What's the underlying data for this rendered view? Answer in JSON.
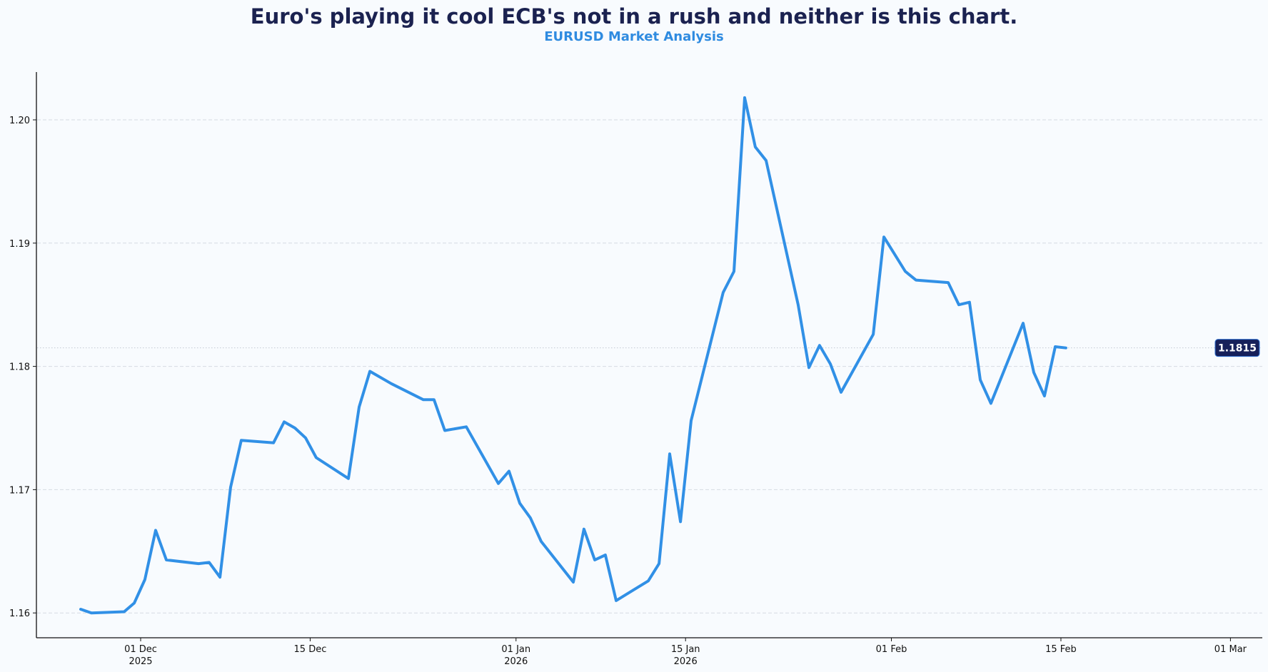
{
  "header": {
    "title": "Euro's playing it cool ECB's not in a rush and neither is this chart.",
    "subtitle": "EURUSD Market Analysis"
  },
  "colors": {
    "line": "#3190e6",
    "title": "#1b2250",
    "subtitle": "#2f8be0",
    "badge_bg": "#16205a",
    "grid": "#d6dbe2",
    "background": "#f8fbfe"
  },
  "last_value_badge": "1.1815",
  "chart_data": {
    "type": "line",
    "title": "Euro's playing it cool ECB's not in a rush and neither is this chart.",
    "subtitle": "EURUSD Market Analysis",
    "xlabel": "",
    "ylabel": "",
    "ylim": [
      1.1585,
      1.2039
    ],
    "grid": {
      "y": true,
      "x": false,
      "style": "dashed"
    },
    "legend": null,
    "y_ticks": [
      "1.16",
      "1.17",
      "1.18",
      "1.19",
      "1.20"
    ],
    "x_ticks": [
      {
        "label": "01 Dec",
        "sub": "2025",
        "x_day": 0
      },
      {
        "label": "15 Dec",
        "sub": "",
        "x_day": 14
      },
      {
        "label": "01 Jan",
        "sub": "2026",
        "x_day": 31
      },
      {
        "label": "15 Jan",
        "sub": "2026",
        "x_day": 45
      },
      {
        "label": "01 Feb",
        "sub": "",
        "x_day": 62
      },
      {
        "label": "15 Feb",
        "sub": "",
        "x_day": 76
      },
      {
        "label": "01 Mar",
        "sub": "",
        "x_day": 90
      }
    ],
    "annotation": {
      "type": "last-value",
      "value": 1.1815,
      "label": "1.1815"
    },
    "series": [
      {
        "name": "EURUSD",
        "x_day": [
          -4.95,
          -4.07,
          -1.36,
          -0.53,
          0.35,
          1.24,
          2.12,
          4.78,
          5.66,
          6.55,
          7.43,
          8.31,
          10.97,
          11.85,
          12.74,
          13.62,
          14.5,
          17.16,
          18.04,
          18.93,
          20.7,
          23.35,
          24.23,
          25.12,
          26.89,
          29.54,
          30.42,
          31.31,
          32.19,
          33.08,
          35.73,
          36.61,
          37.5,
          38.38,
          39.27,
          41.92,
          42.81,
          43.69,
          44.58,
          45.46,
          48.11,
          49.0,
          49.88,
          50.76,
          51.65,
          54.3,
          55.19,
          56.07,
          56.96,
          57.84,
          60.5,
          61.38,
          63.15,
          64.03,
          66.69,
          67.57,
          68.45,
          69.34,
          70.22,
          72.88,
          73.76,
          74.64,
          75.53,
          76.41
        ],
        "values": [
          1.1603,
          1.16,
          1.1601,
          1.1608,
          1.1627,
          1.1667,
          1.1643,
          1.164,
          1.1641,
          1.1629,
          1.1702,
          1.174,
          1.1738,
          1.1755,
          1.175,
          1.1742,
          1.1726,
          1.1709,
          1.1767,
          1.1796,
          1.1786,
          1.1773,
          1.1773,
          1.1748,
          1.1751,
          1.1705,
          1.1715,
          1.1689,
          1.1677,
          1.1658,
          1.1625,
          1.1668,
          1.1643,
          1.1647,
          1.161,
          1.1626,
          1.164,
          1.1729,
          1.1674,
          1.1756,
          1.186,
          1.1877,
          1.2018,
          1.1978,
          1.1967,
          1.185,
          1.1799,
          1.1817,
          1.1802,
          1.1779,
          1.1826,
          1.1905,
          1.1877,
          1.187,
          1.1868,
          1.185,
          1.1852,
          1.1789,
          1.177,
          1.1835,
          1.1795,
          1.1776,
          1.1816,
          1.1815
        ]
      }
    ]
  }
}
